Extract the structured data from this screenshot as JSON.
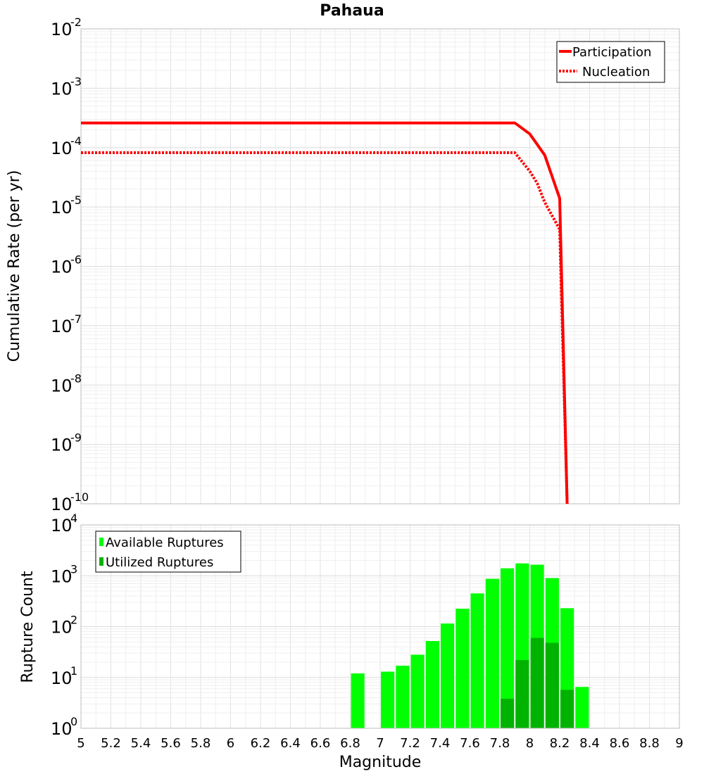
{
  "chart_data": [
    {
      "type": "line",
      "title": "Pahaua",
      "ylabel": "Cumulative Rate (per yr)",
      "xlabel": "",
      "yscale": "log",
      "xlim": [
        5,
        9
      ],
      "ylim_exp": [
        -10,
        -2
      ],
      "ytick_exponents": [
        -2,
        -3,
        -4,
        -5,
        -6,
        -7,
        -8,
        -9,
        -10
      ],
      "ytick_base": "10",
      "grid": true,
      "legend": {
        "position": "top-right",
        "entries": [
          "Participation",
          "Nucleation"
        ]
      },
      "series": [
        {
          "name": "Participation",
          "color": "#ff0000",
          "style": "solid",
          "x": [
            5.0,
            7.9,
            8.0,
            8.1,
            8.2,
            8.25
          ],
          "y": [
            0.00026,
            0.00026,
            0.00017,
            7.5e-05,
            1.4e-05,
            1e-10
          ]
        },
        {
          "name": "Nucleation",
          "color": "#ff0000",
          "style": "dotted",
          "x": [
            5.0,
            7.9,
            8.0,
            8.05,
            8.1,
            8.2,
            8.25
          ],
          "y": [
            8.2e-05,
            8.2e-05,
            4e-05,
            2.5e-05,
            1.2e-05,
            4.2e-06,
            1e-10
          ]
        }
      ]
    },
    {
      "type": "bar",
      "title": "",
      "xlabel": "Magnitude",
      "ylabel": "Rupture Count",
      "yscale": "log",
      "xlim": [
        5,
        9
      ],
      "ylim_exp": [
        0,
        4
      ],
      "ytick_exponents": [
        4,
        3,
        2,
        1,
        0
      ],
      "ytick_base": "10",
      "xtick_labels": [
        "5",
        "5.2",
        "5.4",
        "5.6",
        "5.8",
        "6",
        "6.2",
        "6.4",
        "6.6",
        "6.8",
        "7",
        "7.2",
        "7.4",
        "7.6",
        "7.8",
        "8",
        "8.2",
        "8.4",
        "8.6",
        "8.8",
        "9"
      ],
      "bar_width": 0.09,
      "grid": true,
      "legend": {
        "position": "top-left",
        "entries": [
          "Available Ruptures",
          "Utilized Ruptures"
        ]
      },
      "series": [
        {
          "name": "Available Ruptures",
          "color": "#00ff00",
          "x": [
            6.85,
            7.05,
            7.15,
            7.25,
            7.35,
            7.45,
            7.55,
            7.65,
            7.75,
            7.85,
            7.95,
            8.05,
            8.15,
            8.25,
            8.35
          ],
          "y": [
            12,
            13,
            17,
            28,
            52,
            115,
            225,
            450,
            870,
            1400,
            1750,
            1650,
            900,
            230,
            6.5
          ]
        },
        {
          "name": "Utilized Ruptures",
          "color": "#00b300",
          "x": [
            7.85,
            7.95,
            8.05,
            8.15,
            8.25
          ],
          "y": [
            3.8,
            22,
            60,
            48,
            5.7
          ]
        }
      ]
    }
  ]
}
